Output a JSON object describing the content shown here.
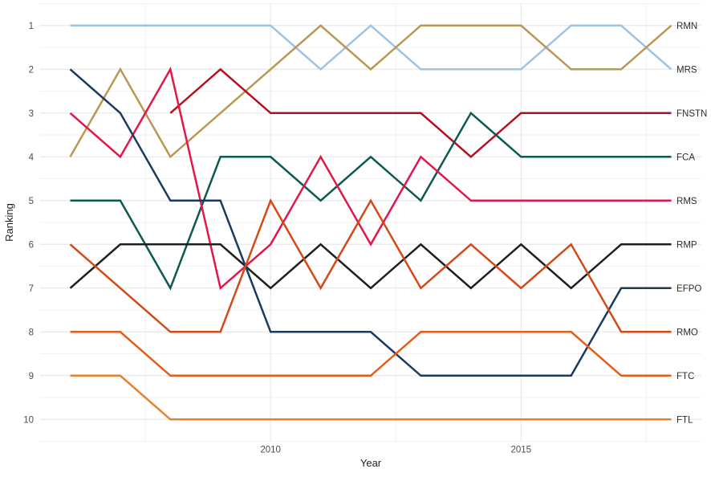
{
  "chart_data": {
    "type": "line",
    "subtype": "bump-chart",
    "title": "",
    "xlabel": "Year",
    "ylabel": "Ranking",
    "x": [
      2006,
      2007,
      2008,
      2009,
      2010,
      2011,
      2012,
      2013,
      2014,
      2015,
      2016,
      2017,
      2018
    ],
    "xlim": [
      2005.4,
      2018.6
    ],
    "ylim_ranks": [
      0.5,
      10.5
    ],
    "x_ticks_major": [
      2010,
      2015
    ],
    "x_gridlines_minor": [
      2007.5,
      2012.5,
      2017.5
    ],
    "y_ticks": [
      1,
      2,
      3,
      4,
      5,
      6,
      7,
      8,
      9,
      10
    ],
    "y_gridlines_minor": [
      0.5,
      1.5,
      2.5,
      3.5,
      4.5,
      5.5,
      6.5,
      7.5,
      8.5,
      9.5,
      10.5
    ],
    "grid": {
      "major_color": "#e3e3e3",
      "minor_color": "#f1f1f1",
      "on": true
    },
    "colors": {
      "tick_label": "#4d4d4d",
      "axis_title": "#1f1f1f",
      "series_label": "#2e2e2e"
    },
    "legend_position": "right-of-lines",
    "series": [
      {
        "name": "MRS",
        "color": "#9dc3e6",
        "values": [
          1,
          1,
          1,
          1,
          1,
          2,
          1,
          2,
          2,
          2,
          1,
          1,
          2
        ]
      },
      {
        "name": "RMN",
        "color": "#ba9853",
        "values": [
          4,
          2,
          4,
          3,
          2,
          1,
          2,
          1,
          1,
          1,
          2,
          2,
          1
        ]
      },
      {
        "name": "FNSTN",
        "color": "#b5101f",
        "values": [
          null,
          null,
          3,
          2,
          3,
          3,
          3,
          3,
          4,
          3,
          3,
          3,
          3
        ]
      },
      {
        "name": "FCA",
        "color": "#0d5a50",
        "values": [
          5,
          5,
          7,
          4,
          4,
          5,
          4,
          5,
          3,
          4,
          4,
          4,
          4
        ]
      },
      {
        "name": "RMS",
        "color": "#e2174b",
        "values": [
          3,
          4,
          2,
          7,
          6,
          4,
          6,
          4,
          5,
          5,
          5,
          5,
          5
        ]
      },
      {
        "name": "RMP",
        "color": "#1f1f1f",
        "values": [
          7,
          6,
          6,
          6,
          7,
          6,
          7,
          6,
          7,
          6,
          7,
          6,
          6
        ]
      },
      {
        "name": "EFPO",
        "color": "#1b3a5f",
        "values": [
          2,
          3,
          5,
          5,
          8,
          8,
          8,
          9,
          9,
          9,
          9,
          7,
          7
        ]
      },
      {
        "name": "RMO",
        "color": "#d34a18",
        "values": [
          6,
          7,
          8,
          8,
          5,
          7,
          5,
          7,
          6,
          7,
          6,
          8,
          8
        ]
      },
      {
        "name": "FTC",
        "color": "#e55c19",
        "values": [
          8,
          8,
          9,
          9,
          9,
          9,
          9,
          8,
          8,
          8,
          8,
          9,
          9
        ]
      },
      {
        "name": "FTL",
        "color": "#e5822d",
        "values": [
          9,
          9,
          10,
          10,
          10,
          10,
          10,
          10,
          10,
          10,
          10,
          10,
          10
        ]
      }
    ]
  }
}
